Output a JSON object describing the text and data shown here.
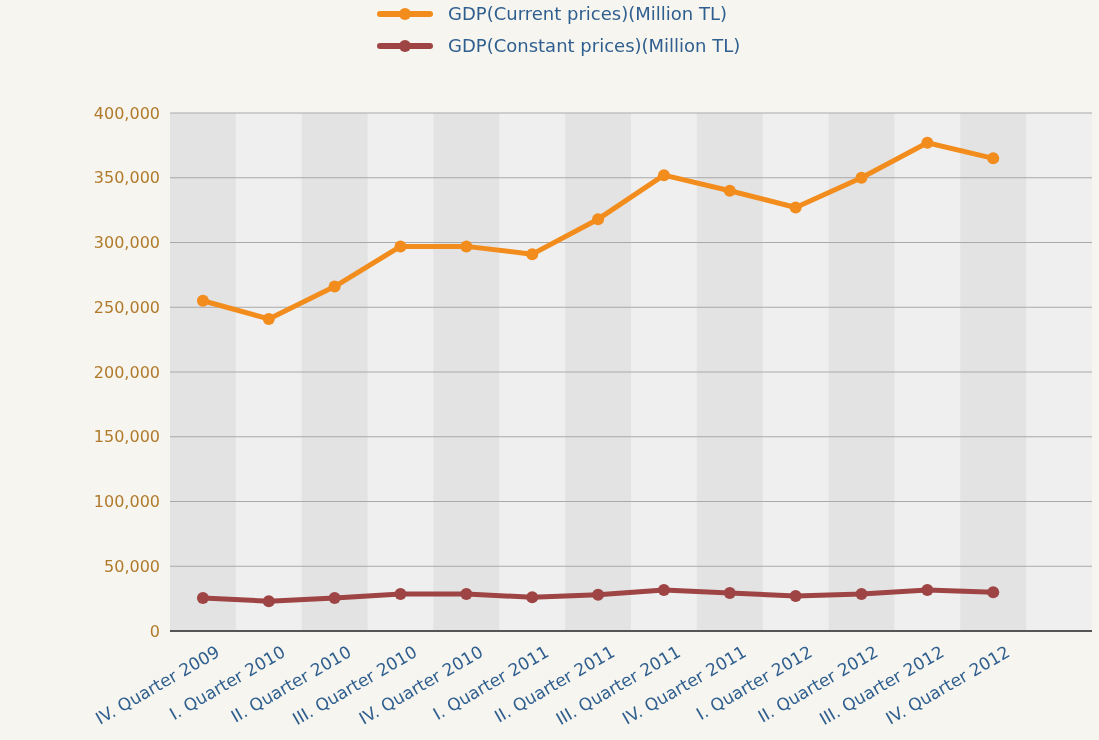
{
  "chart_data": {
    "type": "line",
    "categories": [
      "IV. Quarter 2009",
      "I. Quarter 2010",
      "II. Quarter 2010",
      "III. Quarter 2010",
      "IV. Quarter 2010",
      "I. Quarter 2011",
      "II. Quarter 2011",
      "III. Quarter 2011",
      "IV. Quarter 2011",
      "I. Quarter 2012",
      "II. Quarter 2012",
      "III. Quarter 2012",
      "IV. Quarter 2012",
      null
    ],
    "series": [
      {
        "name": "GDP(Current prices)(Million TL)",
        "color": "#f28c1c",
        "values": [
          255000,
          241000,
          266000,
          297000,
          297000,
          291000,
          318000,
          352000,
          340000,
          327000,
          350000,
          377000,
          365000,
          null
        ]
      },
      {
        "name": "GDP(Constant prices)(Million TL)",
        "color": "#9e4444",
        "values": [
          25500,
          23000,
          25500,
          28600,
          28600,
          26000,
          28000,
          31700,
          29400,
          27000,
          28600,
          31700,
          30000,
          null
        ]
      }
    ],
    "ylim": [
      0,
      400000
    ],
    "yticks": [
      {
        "value": 0,
        "label": "0"
      },
      {
        "value": 50000,
        "label": "50,000"
      },
      {
        "value": 100000,
        "label": "100,000"
      },
      {
        "value": 150000,
        "label": "150,000"
      },
      {
        "value": 200000,
        "label": "200,000"
      },
      {
        "value": 250000,
        "label": "250,000"
      },
      {
        "value": 300000,
        "label": "300,000"
      },
      {
        "value": 350000,
        "label": "350,000"
      },
      {
        "value": 400000,
        "label": "400,000"
      }
    ],
    "grid": "y",
    "legend": "top",
    "marker": "circle",
    "line_style": "solid"
  }
}
